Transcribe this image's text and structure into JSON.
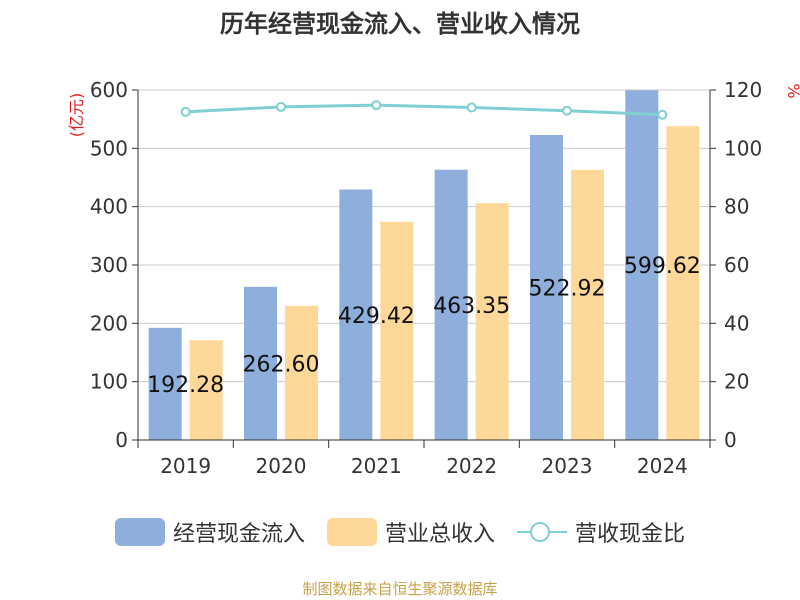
{
  "chart_data": {
    "type": "bar",
    "title": "历年经营现金流入、营业收入情况",
    "categories": [
      "2019",
      "2020",
      "2021",
      "2022",
      "2023",
      "2024"
    ],
    "series": [
      {
        "name": "经营现金流入",
        "type": "bar",
        "color": "#8eaedb",
        "values": [
          192.28,
          262.6,
          429.42,
          463.35,
          522.92,
          599.62
        ]
      },
      {
        "name": "营业总收入",
        "type": "bar",
        "color": "#fed898",
        "values": [
          171,
          230,
          374,
          406,
          463,
          538
        ]
      },
      {
        "name": "营收现金比",
        "type": "line",
        "axis": "right",
        "color": "#7fd0d3",
        "values": [
          112.5,
          114.2,
          114.8,
          114.0,
          112.9,
          111.5
        ]
      }
    ],
    "data_labels": [
      "192.28",
      "262.60",
      "429.42",
      "463.35",
      "522.92",
      "599.62"
    ],
    "y_left": {
      "label": "(亿元)",
      "ylim": [
        0,
        600
      ],
      "ticks": [
        "0",
        "100",
        "200",
        "300",
        "400",
        "500",
        "600"
      ]
    },
    "y_right": {
      "label": "%",
      "ylim": [
        0,
        120
      ],
      "ticks": [
        "0",
        "20",
        "40",
        "60",
        "80",
        "100",
        "120"
      ]
    },
    "grid": true,
    "legend_position": "bottom"
  },
  "source": "制图数据来自恒生聚源数据库"
}
